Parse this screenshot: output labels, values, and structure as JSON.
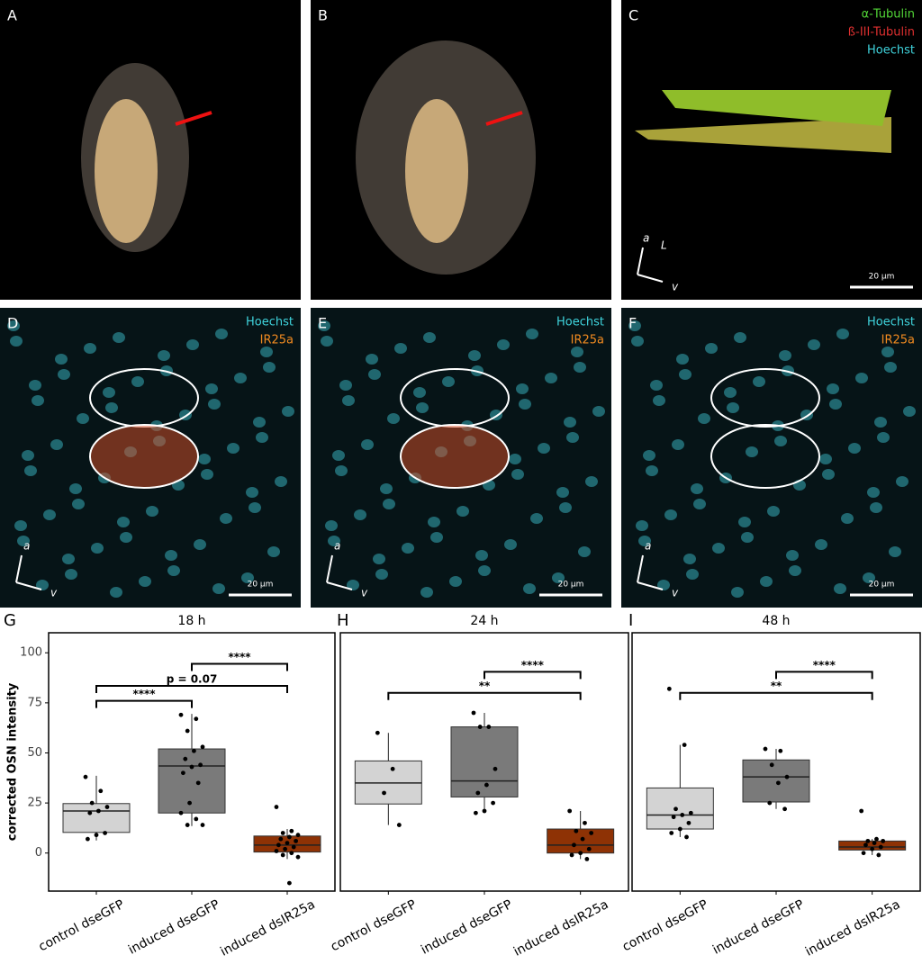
{
  "panels": [
    {
      "letter": "A"
    },
    {
      "letter": "B"
    },
    {
      "letter": "C",
      "legend": [
        "α-Tubulin",
        "ß-III-Tubulin",
        "Hoechst"
      ],
      "axes": [
        "a",
        "L",
        "v"
      ],
      "scale_bar": "20 µm"
    },
    {
      "letter": "D",
      "legend": [
        "Hoechst",
        "IR25a"
      ],
      "axes": [
        "a",
        "v"
      ],
      "scale_bar": "20 µm"
    },
    {
      "letter": "E",
      "legend": [
        "Hoechst",
        "IR25a"
      ],
      "axes": [
        "a",
        "v"
      ],
      "scale_bar": "20 µm"
    },
    {
      "letter": "F",
      "legend": [
        "Hoechst",
        "IR25a"
      ],
      "axes": [
        "a",
        "v"
      ],
      "scale_bar": "20 µm"
    }
  ],
  "chart_data": [
    {
      "type": "box",
      "label": "G",
      "title": "18 h",
      "ylabel": "corrected OSN intensity",
      "ylim": [
        -19,
        110
      ],
      "yticks": [
        0,
        25,
        50,
        75,
        100
      ],
      "categories": [
        "control dseGFP",
        "induced dseGFP",
        "induced dsIR25a"
      ],
      "colors": [
        "#d3d3d3",
        "#7a7a7a",
        "#8e3205"
      ],
      "boxes": [
        {
          "q1": 10.3,
          "median": 21,
          "q3": 24.7,
          "whisker_low": 6.3,
          "whisker_high": 38.6,
          "points": [
            38,
            31,
            25,
            23,
            21,
            20,
            10,
            9,
            7
          ]
        },
        {
          "q1": 20,
          "median": 43.5,
          "q3": 52,
          "whisker_low": 13.5,
          "whisker_high": 69.5,
          "points": [
            69,
            67,
            61,
            53,
            51,
            47,
            44,
            43,
            40,
            35,
            25,
            20,
            17,
            14,
            14
          ]
        },
        {
          "q1": 0.5,
          "median": 4,
          "q3": 8.5,
          "whisker_low": -3,
          "whisker_high": 12,
          "points": [
            23,
            11,
            10,
            9,
            8,
            7,
            6,
            5,
            4,
            3,
            2,
            1,
            0,
            -1,
            -2,
            -15
          ]
        }
      ],
      "brackets": [
        {
          "from": 0,
          "to": 1,
          "y": 76,
          "label": "****"
        },
        {
          "from": 0,
          "to": 2,
          "y": 83.5,
          "label": "p = 0.07"
        },
        {
          "from": 1,
          "to": 2,
          "y": 94.5,
          "label": "****"
        }
      ]
    },
    {
      "type": "box",
      "label": "H",
      "title": "24 h",
      "ylim": [
        -19,
        110
      ],
      "categories": [
        "control dseGFP",
        "induced dseGFP",
        "induced dsIR25a"
      ],
      "colors": [
        "#d3d3d3",
        "#7a7a7a",
        "#8e3205"
      ],
      "boxes": [
        {
          "q1": 24.5,
          "median": 35,
          "q3": 46,
          "whisker_low": 14,
          "whisker_high": 60,
          "points": [
            60,
            42,
            30,
            14
          ]
        },
        {
          "q1": 28,
          "median": 36,
          "q3": 63,
          "whisker_low": 20,
          "whisker_high": 70,
          "points": [
            70,
            63,
            63,
            42,
            34,
            30,
            25,
            21,
            20
          ]
        },
        {
          "q1": 0,
          "median": 4,
          "q3": 12,
          "whisker_low": -3,
          "whisker_high": 21,
          "points": [
            21,
            15,
            11,
            10,
            7,
            4,
            2,
            0,
            -1,
            -3
          ]
        }
      ],
      "brackets": [
        {
          "from": 0,
          "to": 2,
          "y": 80,
          "label": "**"
        },
        {
          "from": 1,
          "to": 2,
          "y": 90.5,
          "label": "****"
        }
      ]
    },
    {
      "type": "box",
      "label": "I",
      "title": "48 h",
      "ylim": [
        -19,
        110
      ],
      "categories": [
        "control dseGFP",
        "induced dseGFP",
        "induced dsIR25a"
      ],
      "colors": [
        "#d3d3d3",
        "#7a7a7a",
        "#8e3205"
      ],
      "boxes": [
        {
          "q1": 12,
          "median": 19,
          "q3": 32.5,
          "whisker_low": 8,
          "whisker_high": 54,
          "points": [
            82,
            54,
            22,
            20,
            19,
            18,
            15,
            12,
            10,
            8
          ]
        },
        {
          "q1": 25.5,
          "median": 38,
          "q3": 46.5,
          "whisker_low": 22,
          "whisker_high": 52,
          "points": [
            52,
            51,
            44,
            38,
            35,
            25,
            22
          ]
        },
        {
          "q1": 1.5,
          "median": 3,
          "q3": 6,
          "whisker_low": -1,
          "whisker_high": 7,
          "points": [
            21,
            7,
            6,
            6,
            5,
            4,
            3,
            2,
            0,
            -1
          ]
        }
      ],
      "brackets": [
        {
          "from": 0,
          "to": 2,
          "y": 80,
          "label": "**"
        },
        {
          "from": 1,
          "to": 2,
          "y": 90.5,
          "label": "****"
        }
      ]
    }
  ]
}
